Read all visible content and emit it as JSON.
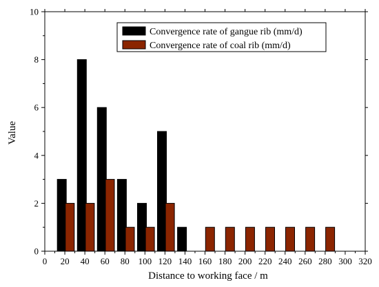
{
  "chart_data": {
    "type": "bar",
    "xlabel": "Distance to working face / m",
    "ylabel": "Value",
    "xlim": [
      0,
      320
    ],
    "ylim": [
      0,
      10
    ],
    "x_ticks": [
      0,
      20,
      40,
      60,
      80,
      100,
      120,
      140,
      160,
      180,
      200,
      220,
      240,
      260,
      280,
      300,
      320
    ],
    "y_ticks": [
      0,
      2,
      4,
      6,
      8,
      10
    ],
    "grid": false,
    "legend_position": "top-center",
    "series": [
      {
        "name": "Convergence rate of gangue rib (mm/d)",
        "color": "#000000",
        "points": [
          {
            "x": 17,
            "y": 3
          },
          {
            "x": 37,
            "y": 8
          },
          {
            "x": 57,
            "y": 6
          },
          {
            "x": 77,
            "y": 3
          },
          {
            "x": 97,
            "y": 2
          },
          {
            "x": 117,
            "y": 5
          },
          {
            "x": 137,
            "y": 1
          }
        ]
      },
      {
        "name": "Convergence rate of coal rib (mm/d)",
        "color": "#8b2500",
        "points": [
          {
            "x": 25,
            "y": 2
          },
          {
            "x": 45,
            "y": 2
          },
          {
            "x": 65,
            "y": 3
          },
          {
            "x": 85,
            "y": 1
          },
          {
            "x": 105,
            "y": 1
          },
          {
            "x": 125,
            "y": 2
          },
          {
            "x": 165,
            "y": 1
          },
          {
            "x": 185,
            "y": 1
          },
          {
            "x": 205,
            "y": 1
          },
          {
            "x": 225,
            "y": 1
          },
          {
            "x": 245,
            "y": 1
          },
          {
            "x": 265,
            "y": 1
          },
          {
            "x": 285,
            "y": 1
          }
        ]
      }
    ]
  }
}
